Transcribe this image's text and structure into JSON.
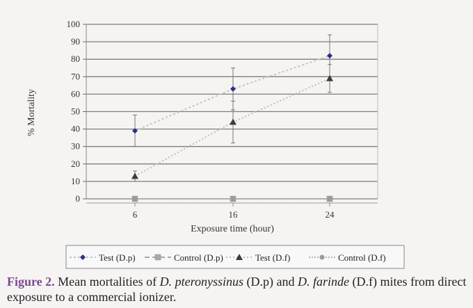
{
  "chart_data": {
    "type": "line",
    "xlabel": "Exposure time (hour)",
    "ylabel": "% Mortality",
    "x": [
      6,
      16,
      24
    ],
    "xticks": [
      "6",
      "16",
      "24"
    ],
    "ylim": [
      0,
      100
    ],
    "yticks": [
      0,
      10,
      20,
      30,
      40,
      50,
      60,
      70,
      80,
      90,
      100
    ],
    "grid": true,
    "legend_position": "bottom",
    "series": [
      {
        "name": "Test (D.p)",
        "values": [
          39,
          63,
          82
        ],
        "error": [
          9,
          12,
          12
        ],
        "marker": "diamond",
        "color": "#2b2f8a",
        "line_color": "#c6c6c6",
        "dash": "3,3"
      },
      {
        "name": "Control (D.p)",
        "values": [
          0,
          0,
          0
        ],
        "error": [
          0,
          0,
          0
        ],
        "marker": "square",
        "color": "#a9a9a9",
        "line_color": "#a9a9a9",
        "dash": "7,4"
      },
      {
        "name": "Test (D.f)",
        "values": [
          13,
          44,
          69
        ],
        "error": [
          3,
          12,
          8
        ],
        "marker": "triangle",
        "color": "#3d3d2f",
        "line_color": "#bdbdbd",
        "dash": "2,3"
      },
      {
        "name": "Control (D.f)",
        "values": [
          0,
          0,
          0
        ],
        "error": [
          0,
          0,
          0
        ],
        "marker": "circle",
        "color": "#9a9a9a",
        "line_color": "#b5b5b5",
        "dash": "2,2"
      }
    ]
  },
  "caption": {
    "label": "Figure 2.",
    "part1": " Mean mortalities of ",
    "species1": "D. pteronyssinus",
    "part2": " (D.p) and ",
    "species2": "D. farinde",
    "part3": " (D.f) mites from direct exposure to a commercial ionizer."
  }
}
